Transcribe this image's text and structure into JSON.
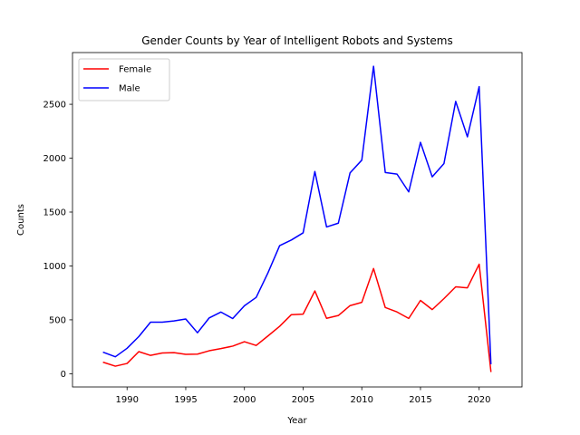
{
  "chart_data": {
    "type": "line",
    "title": "Gender Counts by Year of Intelligent Robots and Systems",
    "xlabel": "Year",
    "ylabel": "Counts",
    "xlim": [
      1985.35,
      2023.65
    ],
    "ylim": [
      -123,
      2980
    ],
    "xticks": [
      1990,
      1995,
      2000,
      2005,
      2010,
      2015,
      2020
    ],
    "yticks": [
      0,
      500,
      1000,
      1500,
      2000,
      2500
    ],
    "grid": false,
    "legend": "upper left",
    "x": [
      1988,
      1989,
      1990,
      1991,
      1992,
      1993,
      1994,
      1995,
      1996,
      1997,
      1998,
      1999,
      2000,
      2001,
      2002,
      2003,
      2004,
      2005,
      2006,
      2007,
      2008,
      2009,
      2010,
      2011,
      2012,
      2013,
      2014,
      2015,
      2016,
      2017,
      2018,
      2019,
      2020,
      2021
    ],
    "series": [
      {
        "name": "Female",
        "color": "#ff0000",
        "values": [
          105,
          70,
          95,
          205,
          170,
          192,
          195,
          180,
          182,
          213,
          233,
          256,
          297,
          262,
          350,
          440,
          548,
          553,
          768,
          514,
          540,
          632,
          662,
          976,
          614,
          573,
          513,
          680,
          595,
          697,
          806,
          797,
          1016,
          22
        ]
      },
      {
        "name": "Male",
        "color": "#0000ff",
        "values": [
          198,
          157,
          236,
          345,
          478,
          478,
          490,
          508,
          380,
          518,
          572,
          512,
          631,
          708,
          935,
          1188,
          1241,
          1307,
          1876,
          1362,
          1397,
          1864,
          1982,
          2853,
          1867,
          1852,
          1687,
          2147,
          1827,
          1950,
          2527,
          2198,
          2664,
          94
        ]
      }
    ]
  }
}
